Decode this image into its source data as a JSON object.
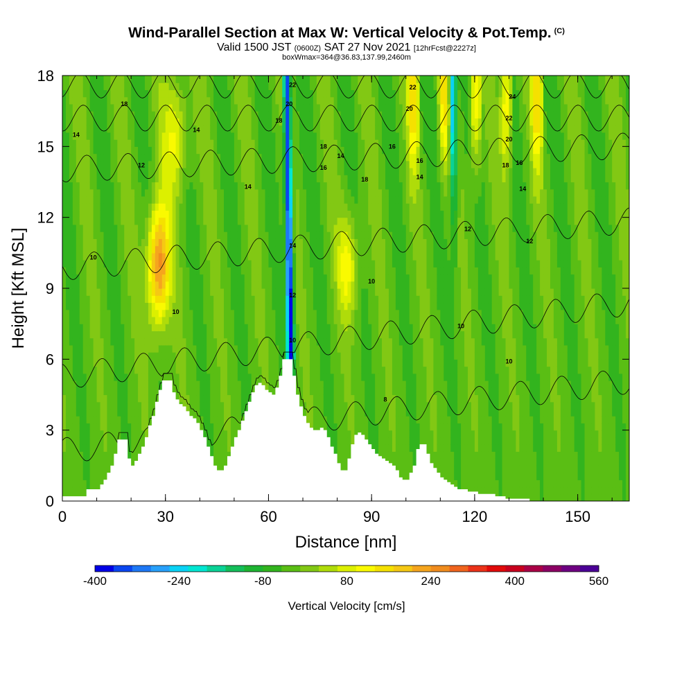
{
  "header": {
    "title": "Wind-Parallel Section at Max W: Vertical Velocity & Pot.Temp.",
    "copyright": "(C)",
    "subtitle_pre": "Valid 1500 JST",
    "subtitle_utc": "(0600Z)",
    "subtitle_date": "SAT 27 Nov 2021",
    "subtitle_fcst": "[12hrFcst@2227z]",
    "box_info": "boxWmax=364@36.83,137.99,2460m"
  },
  "chart_data": {
    "type": "heatmap",
    "xlabel": "Distance [nm]",
    "ylabel": "Height [Kft MSL]",
    "xlim": [
      0,
      165
    ],
    "ylim": [
      0,
      18
    ],
    "xticks": [
      "0",
      "30",
      "60",
      "90",
      "120",
      "150"
    ],
    "yticks": [
      "0",
      "3",
      "6",
      "9",
      "12",
      "15",
      "18"
    ],
    "colorbar": {
      "label": "Vertical Velocity [cm/s]",
      "min": -400,
      "max": 560,
      "step": 40,
      "tick_labels": [
        "-400",
        "-240",
        "-80",
        "80",
        "240",
        "400",
        "560"
      ],
      "colors": [
        "#0000e6",
        "#0a46f0",
        "#1e78f5",
        "#28a0fa",
        "#0ad2f5",
        "#00e6d2",
        "#0ad296",
        "#14be5a",
        "#1eb432",
        "#32b41e",
        "#5abe14",
        "#82c814",
        "#afdc0a",
        "#dcf000",
        "#fafa00",
        "#f5e100",
        "#f5c814",
        "#f5a51e",
        "#f08c1e",
        "#f0641e",
        "#eb3219",
        "#e10a0a",
        "#c8001e",
        "#aa0046",
        "#8c0064",
        "#6e0082",
        "#4b0096"
      ]
    },
    "terrain_kft": [
      [
        0,
        0.2
      ],
      [
        6,
        0.2
      ],
      [
        7,
        0.5
      ],
      [
        10,
        0.5
      ],
      [
        11,
        0.7
      ],
      [
        12,
        0.9
      ],
      [
        13,
        1.2
      ],
      [
        14,
        1.5
      ],
      [
        15,
        2.0
      ],
      [
        16,
        2.6
      ],
      [
        18,
        2.6
      ],
      [
        19,
        1.8
      ],
      [
        20,
        1.5
      ],
      [
        21,
        1.7
      ],
      [
        22,
        2.0
      ],
      [
        23,
        2.3
      ],
      [
        24,
        2.7
      ],
      [
        25,
        3.2
      ],
      [
        26,
        3.6
      ],
      [
        27,
        4.2
      ],
      [
        28,
        4.7
      ],
      [
        29,
        5.1
      ],
      [
        31,
        5.1
      ],
      [
        32,
        4.6
      ],
      [
        33,
        4.3
      ],
      [
        34,
        4.1
      ],
      [
        35,
        4.0
      ],
      [
        36,
        3.8
      ],
      [
        37,
        3.6
      ],
      [
        38,
        3.5
      ],
      [
        39,
        3.3
      ],
      [
        40,
        3.0
      ],
      [
        41,
        2.7
      ],
      [
        42,
        2.3
      ],
      [
        43,
        1.9
      ],
      [
        44,
        1.5
      ],
      [
        45,
        1.3
      ],
      [
        46,
        1.3
      ],
      [
        47,
        1.5
      ],
      [
        48,
        1.9
      ],
      [
        49,
        2.3
      ],
      [
        50,
        2.7
      ],
      [
        51,
        3.0
      ],
      [
        52,
        3.4
      ],
      [
        53,
        3.8
      ],
      [
        54,
        4.2
      ],
      [
        55,
        4.6
      ],
      [
        56,
        4.9
      ],
      [
        57,
        5.0
      ],
      [
        58,
        4.9
      ],
      [
        59,
        4.7
      ],
      [
        60,
        4.6
      ],
      [
        61,
        4.5
      ],
      [
        62,
        4.8
      ],
      [
        63,
        5.3
      ],
      [
        64,
        6.0
      ],
      [
        66,
        6.0
      ],
      [
        67,
        5.3
      ],
      [
        68,
        4.5
      ],
      [
        69,
        4.0
      ],
      [
        70,
        3.6
      ],
      [
        71,
        3.3
      ],
      [
        72,
        3.1
      ],
      [
        73,
        3.0
      ],
      [
        74,
        3.0
      ],
      [
        75,
        3.1
      ],
      [
        76,
        3.0
      ],
      [
        77,
        2.7
      ],
      [
        78,
        2.3
      ],
      [
        79,
        2.0
      ],
      [
        80,
        1.6
      ],
      [
        81,
        1.3
      ],
      [
        82,
        1.3
      ],
      [
        83,
        1.8
      ],
      [
        84,
        2.4
      ],
      [
        85,
        2.8
      ],
      [
        86,
        2.9
      ],
      [
        87,
        2.8
      ],
      [
        88,
        2.6
      ],
      [
        89,
        2.4
      ],
      [
        90,
        2.2
      ],
      [
        91,
        2.0
      ],
      [
        92,
        1.9
      ],
      [
        93,
        1.8
      ],
      [
        94,
        1.7
      ],
      [
        95,
        1.6
      ],
      [
        96,
        1.5
      ],
      [
        97,
        1.3
      ],
      [
        98,
        1.0
      ],
      [
        99,
        0.9
      ],
      [
        100,
        0.9
      ],
      [
        101,
        1.2
      ],
      [
        102,
        1.5
      ],
      [
        103,
        2.2
      ],
      [
        104,
        2.4
      ],
      [
        105,
        2.4
      ],
      [
        106,
        2.0
      ],
      [
        107,
        1.6
      ],
      [
        108,
        1.4
      ],
      [
        109,
        1.2
      ],
      [
        110,
        1.0
      ],
      [
        111,
        0.9
      ],
      [
        112,
        0.8
      ],
      [
        113,
        0.7
      ],
      [
        114,
        0.6
      ],
      [
        115,
        0.5
      ],
      [
        117,
        0.5
      ],
      [
        118,
        0.4
      ],
      [
        120,
        0.4
      ],
      [
        121,
        0.3
      ],
      [
        125,
        0.3
      ],
      [
        126,
        0.2
      ],
      [
        128,
        0.2
      ],
      [
        129,
        0.1
      ],
      [
        135,
        0.1
      ],
      [
        136,
        0.0
      ],
      [
        165,
        0.0
      ]
    ],
    "theta_isotherms": [
      {
        "label": "8",
        "base": 3.2,
        "k": 0.018
      },
      {
        "label": "10",
        "base": 6.4,
        "k": 0.019
      },
      {
        "label": "12",
        "base": 10.6,
        "k": 0.012
      },
      {
        "label": "14",
        "base": 14.4,
        "k": 0.006
      },
      {
        "label": "16",
        "base": 16.2,
        "k": 0.0
      },
      {
        "label": "18",
        "base": 17.6,
        "k": 0.0
      }
    ],
    "contour_labels": [
      {
        "text": "18",
        "x": 18,
        "y": 16.8
      },
      {
        "text": "14",
        "x": 4,
        "y": 15.5
      },
      {
        "text": "14",
        "x": 39,
        "y": 15.7
      },
      {
        "text": "12",
        "x": 23,
        "y": 14.2
      },
      {
        "text": "10",
        "x": 9,
        "y": 10.3
      },
      {
        "text": "10",
        "x": 33,
        "y": 8.0
      },
      {
        "text": "18",
        "x": 63,
        "y": 16.1
      },
      {
        "text": "20",
        "x": 66,
        "y": 16.8
      },
      {
        "text": "22",
        "x": 67,
        "y": 17.6
      },
      {
        "text": "14",
        "x": 54,
        "y": 13.3
      },
      {
        "text": "14",
        "x": 67,
        "y": 10.8
      },
      {
        "text": "12",
        "x": 67,
        "y": 8.7
      },
      {
        "text": "10",
        "x": 67,
        "y": 6.8
      },
      {
        "text": "16",
        "x": 76,
        "y": 14.1
      },
      {
        "text": "18",
        "x": 76,
        "y": 15.0
      },
      {
        "text": "14",
        "x": 81,
        "y": 14.6
      },
      {
        "text": "18",
        "x": 88,
        "y": 13.6
      },
      {
        "text": "16",
        "x": 96,
        "y": 15.0
      },
      {
        "text": "20",
        "x": 101,
        "y": 16.6
      },
      {
        "text": "22",
        "x": 102,
        "y": 17.5
      },
      {
        "text": "16",
        "x": 104,
        "y": 14.4
      },
      {
        "text": "14",
        "x": 104,
        "y": 13.7
      },
      {
        "text": "10",
        "x": 90,
        "y": 9.3
      },
      {
        "text": "8",
        "x": 94,
        "y": 4.3
      },
      {
        "text": "12",
        "x": 118,
        "y": 11.5
      },
      {
        "text": "10",
        "x": 116,
        "y": 7.4
      },
      {
        "text": "10",
        "x": 130,
        "y": 5.9
      },
      {
        "text": "18",
        "x": 129,
        "y": 14.2
      },
      {
        "text": "16",
        "x": 133,
        "y": 14.3
      },
      {
        "text": "20",
        "x": 130,
        "y": 15.3
      },
      {
        "text": "22",
        "x": 130,
        "y": 16.2
      },
      {
        "text": "24",
        "x": 131,
        "y": 17.1
      },
      {
        "text": "14",
        "x": 134,
        "y": 13.2
      },
      {
        "text": "12",
        "x": 136,
        "y": 11.0
      }
    ],
    "updraft_maxima": [
      {
        "x": 28,
        "y": 10.0,
        "w_cms": 364
      }
    ],
    "grid": false
  }
}
